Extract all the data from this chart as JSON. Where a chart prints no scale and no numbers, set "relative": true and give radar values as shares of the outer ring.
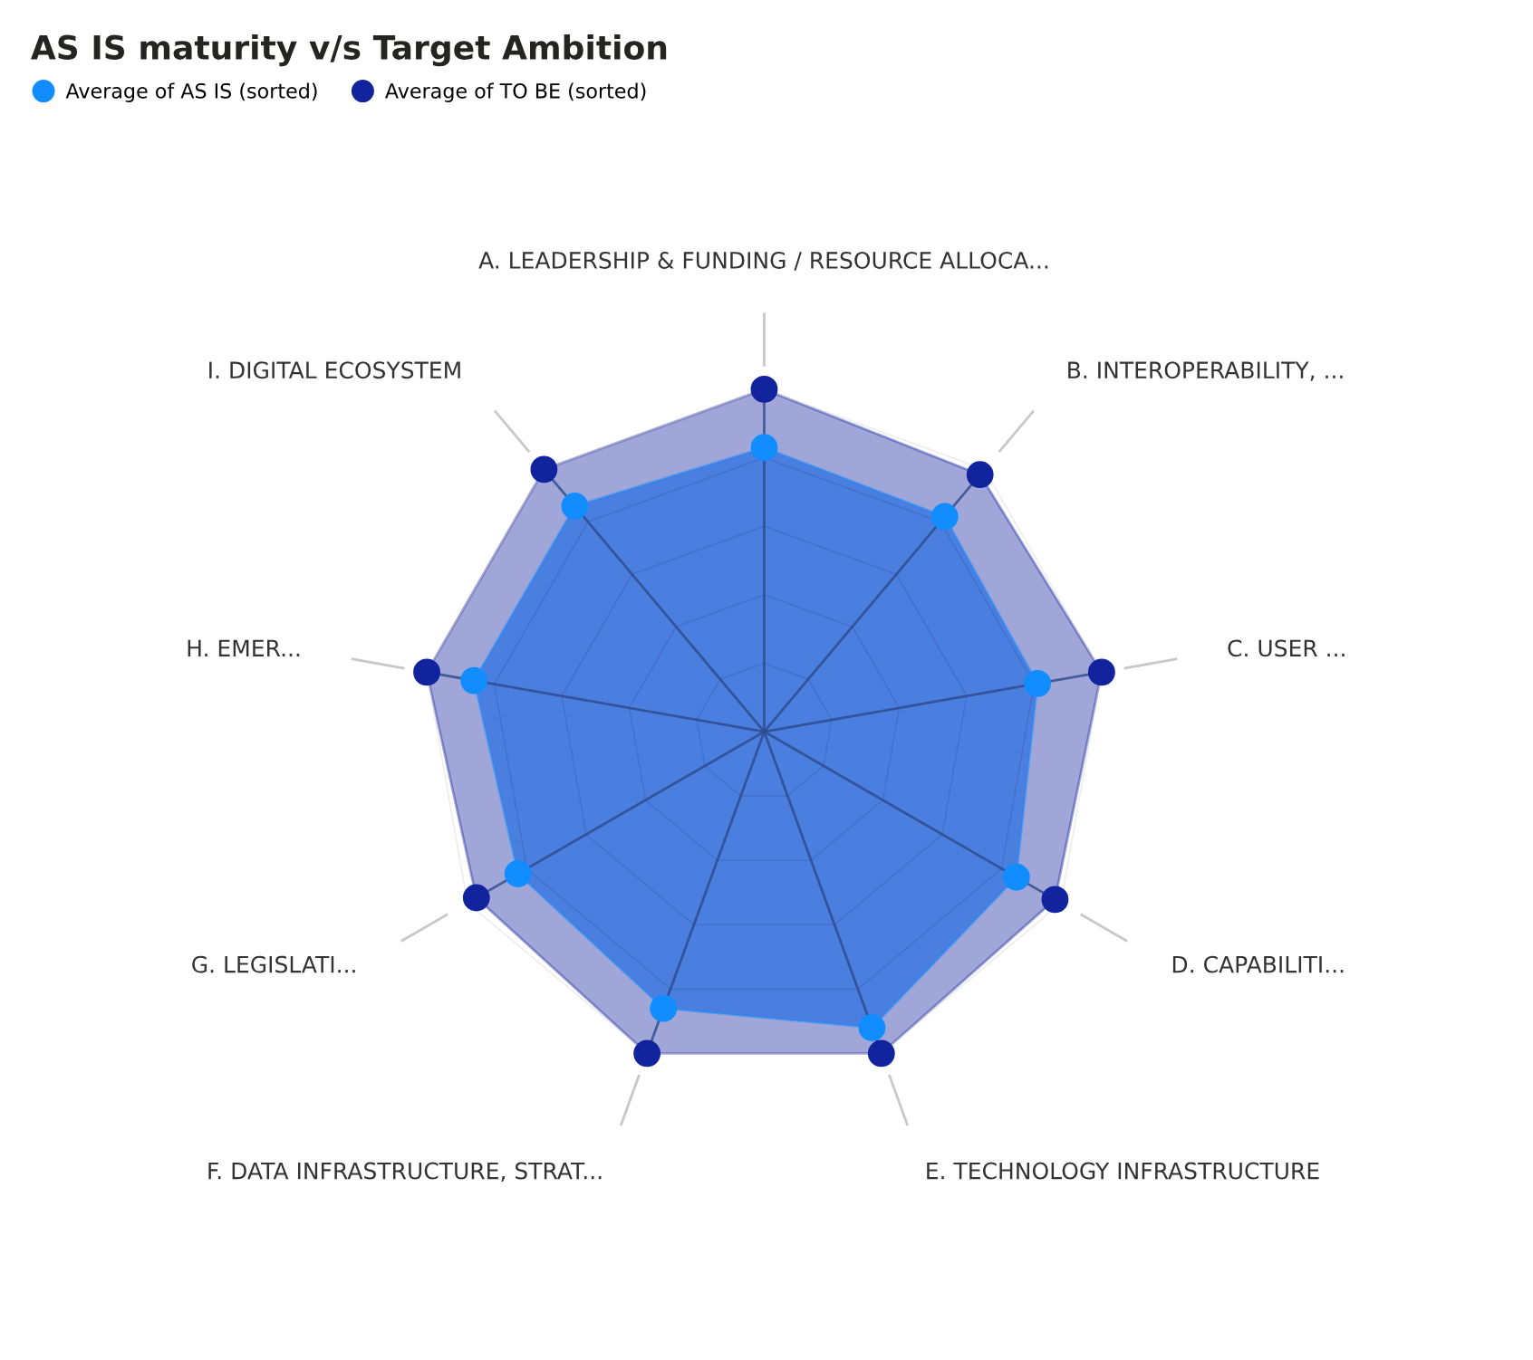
{
  "chart_data": {
    "type": "radar",
    "title": "AS IS maturity v/s Target Ambition",
    "relative": true,
    "grid": true,
    "legend": "top left",
    "marker": "circle",
    "categories": [
      "A. LEADERSHIP & FUNDING / RESOURCE ALLOCA...",
      "B. INTEROPERABILITY, ...",
      "C. USER ...",
      "D. CAPABILITI...",
      "E. TECHNOLOGY INFRASTRUCTURE",
      "F. DATA INFRASTRUCTURE, STRAT...",
      "G. LEGISLATI...",
      "H. EMER...",
      "I. DIGITAL ECOSYSTEM"
    ],
    "series": [
      {
        "name": "Average of AS IS (sorted)",
        "color": "#118dff",
        "values": [
          0.83,
          0.82,
          0.81,
          0.85,
          0.92,
          0.86,
          0.83,
          0.86,
          0.86
        ]
      },
      {
        "name": "Average of TO BE (sorted)",
        "color": "#12239e",
        "values": [
          1.0,
          0.98,
          1.0,
          0.98,
          1.0,
          1.0,
          0.97,
          1.0,
          1.0
        ]
      }
    ]
  }
}
